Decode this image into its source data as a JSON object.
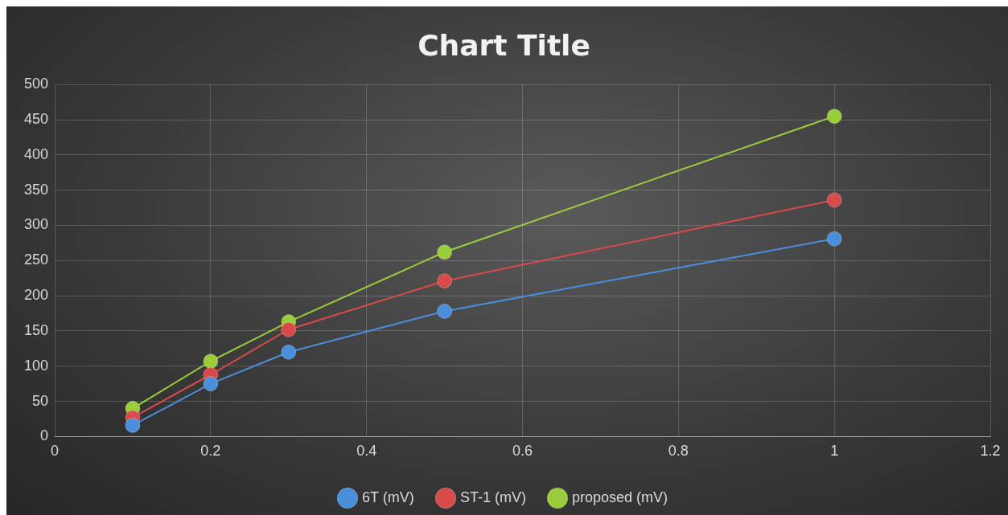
{
  "chart_data": {
    "type": "line",
    "title": "Chart Title",
    "x": [
      0.1,
      0.2,
      0.3,
      0.5,
      1
    ],
    "series": [
      {
        "name": "6T (mV)",
        "color": "#4a8fdc",
        "values": [
          16,
          75,
          120,
          178,
          281
        ]
      },
      {
        "name": "ST-1 (mV)",
        "color": "#d84b48",
        "values": [
          27,
          88,
          152,
          221,
          336
        ]
      },
      {
        "name": "proposed (mV)",
        "color": "#9acd3c",
        "values": [
          40,
          107,
          163,
          262,
          455
        ]
      }
    ],
    "xlim": [
      0,
      1.2
    ],
    "xticks": [
      0,
      0.2,
      0.4,
      0.6,
      0.8,
      1,
      1.2
    ],
    "ylim": [
      0,
      500
    ],
    "yticks": [
      0,
      50,
      100,
      150,
      200,
      250,
      300,
      350,
      400,
      450,
      500
    ],
    "grid": true,
    "legend": "bottom",
    "marker": "circle",
    "line_style": "solid"
  }
}
